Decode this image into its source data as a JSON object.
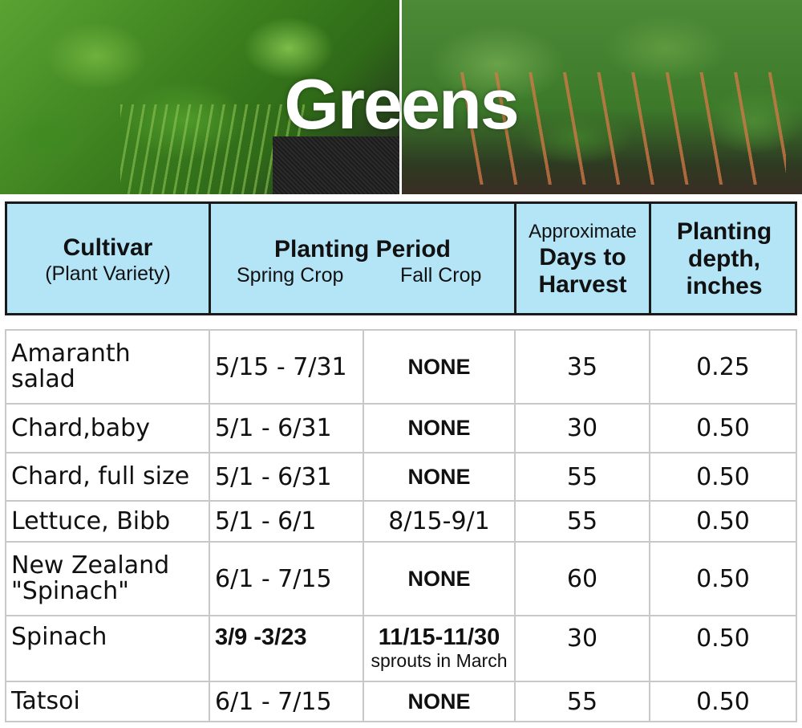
{
  "banner": {
    "title": "Greens"
  },
  "header": {
    "cultivar_main": "Cultivar",
    "cultivar_sub": "(Plant Variety)",
    "period_main": "Planting Period",
    "period_spring": "Spring Crop",
    "period_fall": "Fall Crop",
    "days_line1": "Approximate",
    "days_line2": "Days to",
    "days_line3": "Harvest",
    "depth_line1": "Planting",
    "depth_line2": "depth,",
    "depth_line3": "inches"
  },
  "rows": [
    {
      "cultivar_line1": "Amaranth",
      "cultivar_line2": "salad",
      "spring": "5/15 - 7/31",
      "fall": "NONE",
      "fall_note": "",
      "days": "35",
      "depth": "0.25"
    },
    {
      "cultivar_line1": "Chard,baby",
      "cultivar_line2": "",
      "spring": "5/1 - 6/31",
      "fall": "NONE",
      "fall_note": "",
      "days": "30",
      "depth": "0.50"
    },
    {
      "cultivar_line1": "Chard, full size",
      "cultivar_line2": "",
      "spring": "5/1 - 6/31",
      "fall": "NONE",
      "fall_note": "",
      "days": "55",
      "depth": "0.50"
    },
    {
      "cultivar_line1": "Lettuce, Bibb",
      "cultivar_line2": "",
      "spring": "5/1 - 6/1",
      "fall": "8/15-9/1",
      "fall_note": "",
      "days": "55",
      "depth": "0.50"
    },
    {
      "cultivar_line1": "New Zealand",
      "cultivar_line2": "\"Spinach\"",
      "spring": "6/1 - 7/15",
      "fall": "NONE",
      "fall_note": "",
      "days": "60",
      "depth": "0.50"
    },
    {
      "cultivar_line1": "Spinach",
      "cultivar_line2": "",
      "spring": "3/9 -3/23",
      "fall": "11/15-11/30",
      "fall_note": "sprouts in March",
      "days": "30",
      "depth": "0.50"
    },
    {
      "cultivar_line1": "Tatsoi",
      "cultivar_line2": "",
      "spring": "6/1 - 7/15",
      "fall": "NONE",
      "fall_note": "",
      "days": "55",
      "depth": "0.50"
    }
  ],
  "colors": {
    "header_bg": "#b3e5f7",
    "grid_line": "#c8c8c8",
    "title_text": "#ffffff"
  }
}
